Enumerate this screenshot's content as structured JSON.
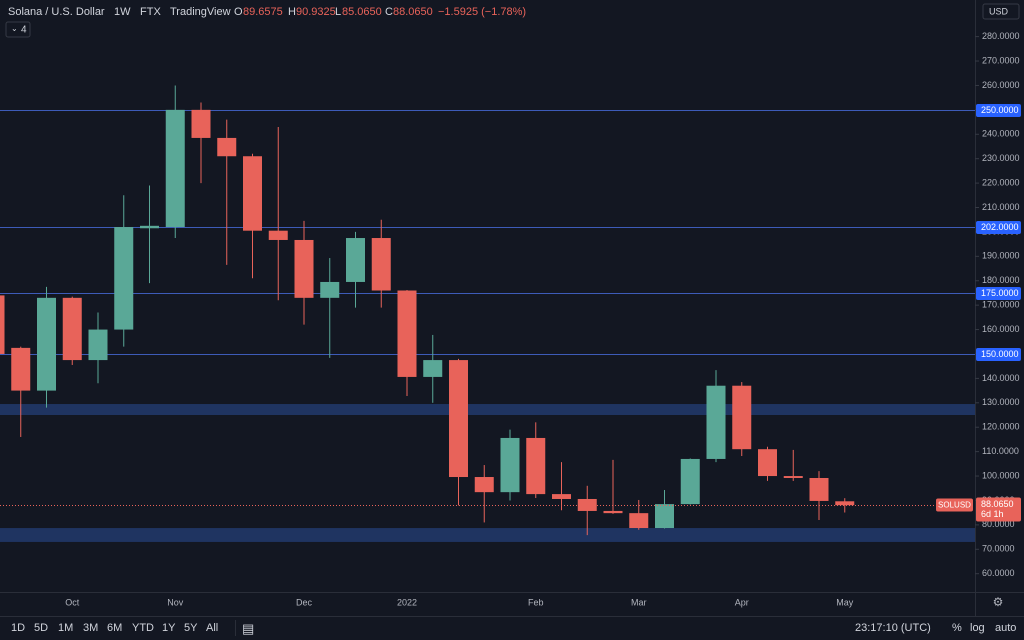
{
  "header": {
    "symbol": "Solana / U.S. Dollar",
    "interval": "1W",
    "exchange": "FTX",
    "source": "TradingView",
    "o_label": "O",
    "open": "89.6575",
    "h_label": "H",
    "high": "90.9325",
    "l_label": "L",
    "low": "85.0650",
    "c_label": "C",
    "close": "88.0650",
    "change": "−1.5925 (−1.78%)",
    "indicator_count": "4",
    "currency": "USD"
  },
  "price_tag": {
    "symbol": "SOLUSD",
    "price": "88.0650",
    "countdown": "6d 1h"
  },
  "toolbar": {
    "ranges": [
      "1D",
      "5D",
      "1M",
      "3M",
      "6M",
      "YTD",
      "1Y",
      "5Y",
      "All"
    ],
    "time": "23:17:10 (UTC)",
    "percent": "%",
    "log": "log",
    "auto": "auto"
  },
  "chart_data": {
    "type": "candlestick",
    "up_color": "#5aa897",
    "down_color": "#e8635a",
    "grid": false,
    "categories": [
      null,
      null,
      null,
      "Oct",
      null,
      null,
      null,
      "Nov",
      null,
      null,
      null,
      null,
      "Dec",
      null,
      null,
      null,
      "2022",
      null,
      null,
      null,
      null,
      "Feb",
      null,
      null,
      null,
      "Mar",
      null,
      null,
      null,
      "Apr",
      null,
      null,
      null,
      "May"
    ],
    "open": [
      174,
      152.5,
      135,
      173,
      147.5,
      160,
      201.5,
      202,
      250,
      238.5,
      231,
      200.5,
      196.7,
      173,
      179.5,
      197.5,
      176,
      140.6,
      147.5,
      99.6,
      93.4,
      115.6,
      92.6,
      90.6,
      85.7,
      84.8,
      78.7,
      88.5,
      107,
      137,
      111,
      100,
      99.2,
      89.6575
    ],
    "high": [
      176,
      153,
      177.5,
      173.5,
      167,
      215,
      219,
      260,
      253,
      246,
      232,
      243,
      204.5,
      189.3,
      200,
      205,
      176.2,
      157.8,
      148,
      104.5,
      119,
      122,
      105.7,
      96,
      106.6,
      90.2,
      94.3,
      107.2,
      143.4,
      138.5,
      112,
      110.7,
      102,
      90.9325
    ],
    "low": [
      146,
      116,
      128,
      145.5,
      138,
      153,
      179,
      197.5,
      220,
      186.5,
      181,
      172,
      162,
      148.4,
      169,
      169,
      132.8,
      130,
      88,
      81,
      90,
      91,
      86,
      75.8,
      84.5,
      78,
      78.5,
      88.3,
      105.7,
      108.2,
      98,
      98,
      82,
      85.065
    ],
    "close": [
      150,
      135,
      173,
      147.5,
      160,
      202,
      202.5,
      250,
      238.5,
      231,
      200.5,
      196.7,
      173,
      179.5,
      197.5,
      176,
      140.6,
      147.5,
      99.6,
      93.4,
      115.6,
      92.6,
      90.6,
      85.7,
      84.8,
      78.7,
      88.5,
      107,
      137,
      111,
      100,
      99.2,
      89.8,
      88.065
    ],
    "ylim": [
      52.5,
      295
    ],
    "yticks": [
      {
        "value": 60,
        "label": "60.0000"
      },
      {
        "value": 70,
        "label": "70.0000"
      },
      {
        "value": 80,
        "label": "80.0000"
      },
      {
        "value": 90,
        "label": "90.0000"
      },
      {
        "value": 100,
        "label": "100.0000"
      },
      {
        "value": 110,
        "label": "110.0000"
      },
      {
        "value": 120,
        "label": "120.0000"
      },
      {
        "value": 130,
        "label": "130.0000"
      },
      {
        "value": 140,
        "label": "140.0000"
      },
      {
        "value": 150,
        "label": "150.0000"
      },
      {
        "value": 160,
        "label": "160.0000"
      },
      {
        "value": 170,
        "label": "170.0000"
      },
      {
        "value": 180,
        "label": "180.0000"
      },
      {
        "value": 190,
        "label": "190.0000"
      },
      {
        "value": 200,
        "label": "200.0000"
      },
      {
        "value": 210,
        "label": "210.0000"
      },
      {
        "value": 220,
        "label": "220.0000"
      },
      {
        "value": 230,
        "label": "230.0000"
      },
      {
        "value": 240,
        "label": "240.0000"
      },
      {
        "value": 250,
        "label": "250.0000"
      },
      {
        "value": 260,
        "label": "260.0000"
      },
      {
        "value": 270,
        "label": "270.0000"
      },
      {
        "value": 280,
        "label": "280.0000"
      }
    ],
    "levels": [
      {
        "value": 250,
        "label": "250.0000"
      },
      {
        "value": 202,
        "label": "202.0000"
      },
      {
        "value": 175,
        "label": "175.0000"
      },
      {
        "value": 150,
        "label": "150.0000"
      }
    ],
    "zones": [
      {
        "low": 125,
        "high": 129.5
      },
      {
        "low": 73,
        "high": 78.7
      }
    ]
  }
}
